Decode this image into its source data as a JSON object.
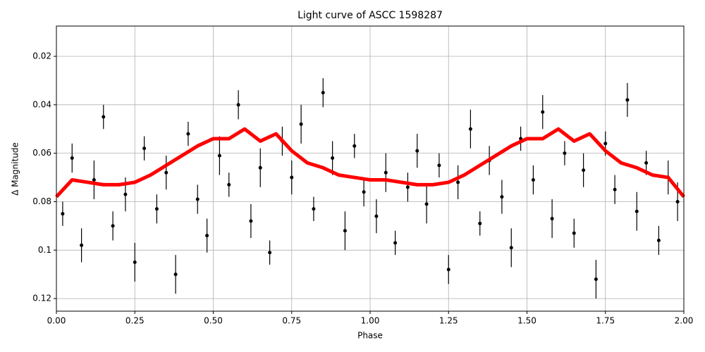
{
  "chart_data": {
    "type": "scatter",
    "title": "Light curve of ASCC 1598287",
    "xlabel": "Phase",
    "ylabel": "Δ Magnitude",
    "xlim": [
      0,
      2
    ],
    "ylim": [
      0.0075,
      0.1252
    ],
    "invert_y": true,
    "grid": true,
    "xticks": [
      {
        "value": 0,
        "label": "0.00"
      },
      {
        "value": 0.25,
        "label": "0.25"
      },
      {
        "value": 0.5,
        "label": "0.50"
      },
      {
        "value": 0.75,
        "label": "0.75"
      },
      {
        "value": 1,
        "label": "1.00"
      },
      {
        "value": 1.25,
        "label": "1.25"
      },
      {
        "value": 1.5,
        "label": "1.50"
      },
      {
        "value": 1.75,
        "label": "1.75"
      },
      {
        "value": 2,
        "label": "2.00"
      }
    ],
    "yticks": [
      0.02,
      0.04,
      0.06,
      0.08,
      0.1,
      0.12
    ],
    "points": {
      "color": "#000000",
      "x": [
        0.02,
        0.05,
        0.08,
        0.12,
        0.15,
        0.18,
        0.22,
        0.25,
        0.28,
        0.32,
        0.35,
        0.38,
        0.42,
        0.45,
        0.48,
        0.52,
        0.55,
        0.58,
        0.62,
        0.65,
        0.68,
        0.72,
        0.75,
        0.78,
        0.82,
        0.85,
        0.88,
        0.92,
        0.95,
        0.98,
        1.02,
        1.05,
        1.08,
        1.12,
        1.15,
        1.18,
        1.22,
        1.25,
        1.28,
        1.32,
        1.35,
        1.38,
        1.42,
        1.45,
        1.48,
        1.52,
        1.55,
        1.58,
        1.62,
        1.65,
        1.68,
        1.72,
        1.75,
        1.78,
        1.82,
        1.85,
        1.88,
        1.92,
        1.95,
        1.98
      ],
      "y": [
        0.085,
        0.062,
        0.098,
        0.071,
        0.045,
        0.09,
        0.077,
        0.105,
        0.058,
        0.083,
        0.068,
        0.11,
        0.052,
        0.079,
        0.094,
        0.061,
        0.073,
        0.04,
        0.088,
        0.066,
        0.101,
        0.055,
        0.07,
        0.048,
        0.083,
        0.035,
        0.062,
        0.092,
        0.057,
        0.076,
        0.086,
        0.068,
        0.097,
        0.074,
        0.059,
        0.081,
        0.065,
        0.108,
        0.072,
        0.05,
        0.089,
        0.063,
        0.078,
        0.099,
        0.054,
        0.071,
        0.043,
        0.087,
        0.06,
        0.093,
        0.067,
        0.112,
        0.056,
        0.075,
        0.038,
        0.084,
        0.064,
        0.096,
        0.07,
        0.08
      ],
      "yerr": [
        0.005,
        0.006,
        0.007,
        0.008,
        0.005,
        0.006,
        0.007,
        0.008,
        0.005,
        0.006,
        0.007,
        0.008,
        0.005,
        0.006,
        0.007,
        0.008,
        0.005,
        0.006,
        0.007,
        0.008,
        0.005,
        0.006,
        0.007,
        0.008,
        0.005,
        0.006,
        0.007,
        0.008,
        0.005,
        0.006,
        0.007,
        0.008,
        0.005,
        0.006,
        0.007,
        0.008,
        0.005,
        0.006,
        0.007,
        0.008,
        0.005,
        0.006,
        0.007,
        0.008,
        0.005,
        0.006,
        0.007,
        0.008,
        0.005,
        0.006,
        0.007,
        0.008,
        0.005,
        0.006,
        0.007,
        0.008,
        0.005,
        0.006,
        0.007,
        0.008
      ]
    },
    "curve": {
      "color": "#ff0000",
      "x": [
        0,
        0.05,
        0.1,
        0.15,
        0.2,
        0.25,
        0.3,
        0.35,
        0.4,
        0.45,
        0.5,
        0.55,
        0.6,
        0.65,
        0.7,
        0.75,
        0.8,
        0.85,
        0.9,
        0.95,
        1,
        1.05,
        1.1,
        1.15,
        1.2,
        1.25,
        1.3,
        1.35,
        1.4,
        1.45,
        1.5,
        1.55,
        1.6,
        1.65,
        1.7,
        1.75,
        1.8,
        1.85,
        1.9,
        1.95,
        2
      ],
      "y": [
        0.078,
        0.071,
        0.072,
        0.073,
        0.073,
        0.072,
        0.069,
        0.065,
        0.061,
        0.057,
        0.054,
        0.054,
        0.05,
        0.055,
        0.052,
        0.059,
        0.064,
        0.066,
        0.069,
        0.07,
        0.071,
        0.071,
        0.072,
        0.073,
        0.073,
        0.072,
        0.069,
        0.065,
        0.061,
        0.057,
        0.054,
        0.054,
        0.05,
        0.055,
        0.052,
        0.059,
        0.064,
        0.066,
        0.069,
        0.07,
        0.078
      ]
    }
  }
}
